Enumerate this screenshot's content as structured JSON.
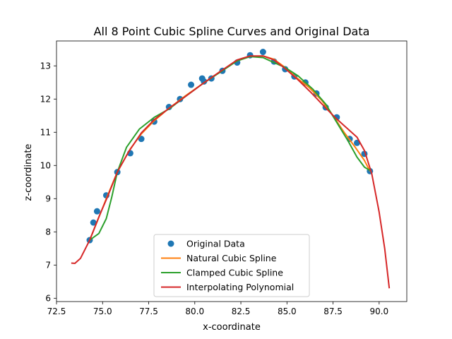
{
  "chart_data": {
    "type": "line",
    "title": "All 8 Point Cubic Spline Curves and Original Data",
    "xlabel": "x-coordinate",
    "ylabel": "z-coordinate",
    "xlim": [
      72.5,
      91.5
    ],
    "ylim": [
      5.9,
      13.75
    ],
    "xticks": [
      "72.5",
      "75.0",
      "77.5",
      "80.0",
      "82.5",
      "85.0",
      "87.5",
      "90.0"
    ],
    "xtick_values": [
      72.5,
      75.0,
      77.5,
      80.0,
      82.5,
      85.0,
      87.5,
      90.0
    ],
    "yticks": [
      "6",
      "7",
      "8",
      "9",
      "10",
      "11",
      "12",
      "13"
    ],
    "ytick_values": [
      6,
      7,
      8,
      9,
      10,
      11,
      12,
      13
    ],
    "grid": false,
    "legend_position": "bottom-center",
    "series": [
      {
        "name": "Original Data",
        "kind": "scatter",
        "color": "#1f77b4",
        "points": [
          [
            74.3,
            7.75
          ],
          [
            74.5,
            8.28
          ],
          [
            74.7,
            8.62
          ],
          [
            75.2,
            9.1
          ],
          [
            75.8,
            9.8
          ],
          [
            76.5,
            10.37
          ],
          [
            77.1,
            10.8
          ],
          [
            77.8,
            11.32
          ],
          [
            78.6,
            11.76
          ],
          [
            79.2,
            12.0
          ],
          [
            79.8,
            12.43
          ],
          [
            80.4,
            12.62
          ],
          [
            80.5,
            12.53
          ],
          [
            80.9,
            12.62
          ],
          [
            81.5,
            12.85
          ],
          [
            82.3,
            13.1
          ],
          [
            83.0,
            13.32
          ],
          [
            83.7,
            13.42
          ],
          [
            84.3,
            13.13
          ],
          [
            84.9,
            12.9
          ],
          [
            85.4,
            12.68
          ],
          [
            86.0,
            12.5
          ],
          [
            86.6,
            12.17
          ],
          [
            87.1,
            11.75
          ],
          [
            87.7,
            11.45
          ],
          [
            88.4,
            10.8
          ],
          [
            88.8,
            10.68
          ],
          [
            89.2,
            10.35
          ],
          [
            89.5,
            9.83
          ]
        ]
      },
      {
        "name": "Natural Cubic Spline",
        "kind": "line",
        "color": "#ff7f0e",
        "points": [
          [
            74.3,
            7.75
          ],
          [
            74.7,
            8.3
          ],
          [
            75.2,
            9.0
          ],
          [
            75.8,
            9.8
          ],
          [
            76.5,
            10.5
          ],
          [
            77.1,
            10.95
          ],
          [
            77.8,
            11.35
          ],
          [
            78.6,
            11.72
          ],
          [
            79.5,
            12.1
          ],
          [
            80.4,
            12.45
          ],
          [
            81.3,
            12.8
          ],
          [
            82.3,
            13.15
          ],
          [
            83.0,
            13.28
          ],
          [
            83.7,
            13.3
          ],
          [
            84.3,
            13.2
          ],
          [
            84.9,
            12.95
          ],
          [
            85.5,
            12.65
          ],
          [
            86.2,
            12.35
          ],
          [
            86.9,
            11.95
          ],
          [
            87.5,
            11.5
          ],
          [
            88.1,
            11.0
          ],
          [
            88.7,
            10.55
          ],
          [
            89.2,
            10.15
          ],
          [
            89.5,
            9.83
          ]
        ]
      },
      {
        "name": "Clamped Cubic Spline",
        "kind": "line",
        "color": "#2ca02c",
        "points": [
          [
            74.3,
            7.75
          ],
          [
            74.8,
            7.95
          ],
          [
            75.2,
            8.4
          ],
          [
            75.5,
            9.05
          ],
          [
            75.8,
            9.8
          ],
          [
            76.3,
            10.55
          ],
          [
            77.0,
            11.1
          ],
          [
            77.8,
            11.45
          ],
          [
            78.6,
            11.7
          ],
          [
            79.5,
            12.08
          ],
          [
            80.4,
            12.45
          ],
          [
            81.3,
            12.78
          ],
          [
            82.3,
            13.15
          ],
          [
            83.0,
            13.28
          ],
          [
            83.7,
            13.25
          ],
          [
            84.3,
            13.1
          ],
          [
            84.9,
            12.95
          ],
          [
            85.6,
            12.7
          ],
          [
            86.4,
            12.3
          ],
          [
            87.1,
            11.85
          ],
          [
            87.7,
            11.3
          ],
          [
            88.3,
            10.75
          ],
          [
            88.8,
            10.25
          ],
          [
            89.2,
            9.95
          ],
          [
            89.5,
            9.85
          ]
        ]
      },
      {
        "name": "Interpolating Polynomial",
        "kind": "line",
        "color": "#d62728",
        "points": [
          [
            73.3,
            7.06
          ],
          [
            73.5,
            7.05
          ],
          [
            73.8,
            7.2
          ],
          [
            74.3,
            7.75
          ],
          [
            74.8,
            8.45
          ],
          [
            75.3,
            9.1
          ],
          [
            75.8,
            9.8
          ],
          [
            76.4,
            10.4
          ],
          [
            77.1,
            10.98
          ],
          [
            77.8,
            11.38
          ],
          [
            78.6,
            11.72
          ],
          [
            79.5,
            12.08
          ],
          [
            80.4,
            12.45
          ],
          [
            81.3,
            12.8
          ],
          [
            82.3,
            13.18
          ],
          [
            83.0,
            13.3
          ],
          [
            83.7,
            13.3
          ],
          [
            84.3,
            13.18
          ],
          [
            84.9,
            12.92
          ],
          [
            85.6,
            12.58
          ],
          [
            86.3,
            12.2
          ],
          [
            86.9,
            11.85
          ],
          [
            87.6,
            11.45
          ],
          [
            88.2,
            11.15
          ],
          [
            88.8,
            10.85
          ],
          [
            89.2,
            10.45
          ],
          [
            89.6,
            9.75
          ],
          [
            90.0,
            8.6
          ],
          [
            90.3,
            7.5
          ],
          [
            90.55,
            6.3
          ]
        ]
      }
    ]
  }
}
